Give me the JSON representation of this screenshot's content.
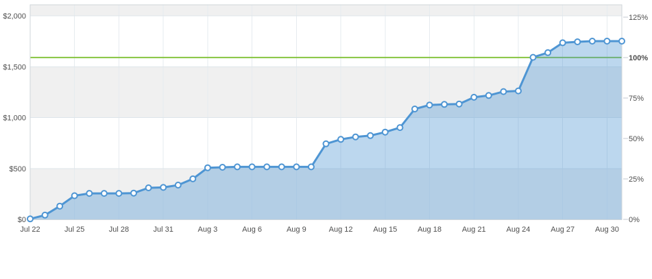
{
  "chart_data": {
    "type": "area",
    "title": "",
    "series": [
      {
        "name": "cumulative-amount-raised",
        "x": [
          "Jul 22",
          "Jul 23",
          "Jul 24",
          "Jul 25",
          "Jul 26",
          "Jul 27",
          "Jul 28",
          "Jul 29",
          "Jul 30",
          "Jul 31",
          "Aug 1",
          "Aug 2",
          "Aug 3",
          "Aug 4",
          "Aug 5",
          "Aug 6",
          "Aug 7",
          "Aug 8",
          "Aug 9",
          "Aug 10",
          "Aug 11",
          "Aug 12",
          "Aug 13",
          "Aug 14",
          "Aug 15",
          "Aug 16",
          "Aug 17",
          "Aug 18",
          "Aug 19",
          "Aug 20",
          "Aug 21",
          "Aug 22",
          "Aug 23",
          "Aug 24",
          "Aug 25",
          "Aug 26",
          "Aug 27",
          "Aug 28",
          "Aug 29",
          "Aug 30",
          "Aug 31"
        ],
        "values": [
          5,
          42,
          130,
          232,
          255,
          255,
          255,
          258,
          310,
          314,
          337,
          398,
          507,
          512,
          516,
          516,
          516,
          516,
          516,
          516,
          742,
          786,
          810,
          823,
          857,
          902,
          1084,
          1123,
          1129,
          1133,
          1199,
          1217,
          1255,
          1262,
          1592,
          1638,
          1735,
          1744,
          1751,
          1751,
          1751
        ]
      }
    ],
    "x_axis": {
      "tick_labels": [
        "Jul 22",
        "Jul 25",
        "Jul 28",
        "Jul 31",
        "Aug 3",
        "Aug 6",
        "Aug 9",
        "Aug 12",
        "Aug 15",
        "Aug 18",
        "Aug 21",
        "Aug 24",
        "Aug 27",
        "Aug 30"
      ],
      "tick_interval_days": 3
    },
    "y_axis_left": {
      "tick_labels": [
        "$0",
        "$500",
        "$1,000",
        "$1,500",
        "$2,000"
      ],
      "tick_values": [
        0,
        500,
        1000,
        1500,
        2000
      ],
      "min": 0,
      "max_visible": 2113
    },
    "y_axis_right": {
      "tick_labels": [
        "0%",
        "25%",
        "50%",
        "75%",
        "100%",
        "125%"
      ],
      "tick_values": [
        0,
        25,
        50,
        75,
        100,
        125
      ],
      "highlighted_tick": "100%"
    },
    "goal_line": {
      "percent": 100,
      "approx_dollars": 1590
    },
    "grid": true,
    "legend": false,
    "alternating_bands": true
  },
  "colors": {
    "line": "#4e95d3",
    "area_fill": "rgba(78,149,211,0.38)",
    "marker_fill": "#ffffff",
    "goal_line": "#86c440",
    "goal_label": "#76b93a",
    "band_gray": "#f0f0f0",
    "grid_vertical": "#e6ebef",
    "grid_horizontal": "#dee5ea",
    "plot_border": "#cfd6da",
    "axis_text": "#4d4d4d",
    "tick_mark": "#c3cad0"
  }
}
